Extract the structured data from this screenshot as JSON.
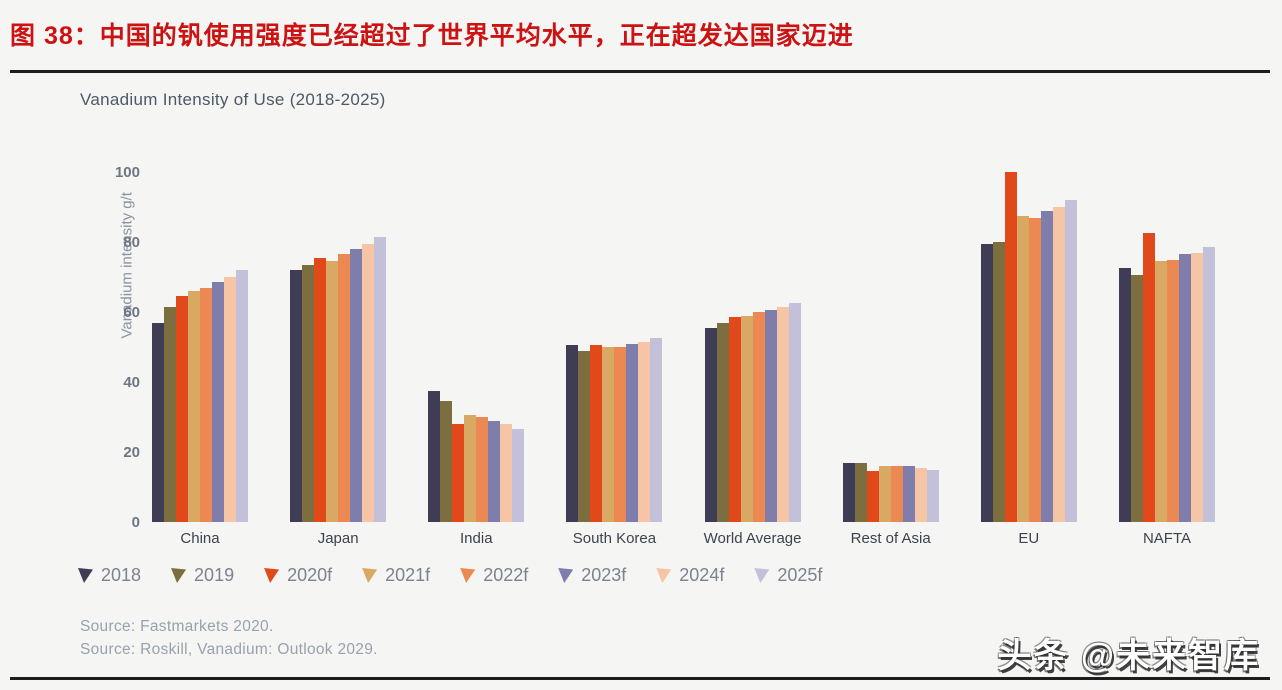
{
  "figure_header": {
    "title": "图 38：中国的钒使用强度已经超过了世界平均水平，正在超发达国家迈进",
    "accent_color": "#cc1212"
  },
  "chart_data": {
    "type": "bar",
    "title": "Vanadium Intensity of Use (2018-2025)",
    "xlabel": "",
    "ylabel": "Vanadium intensity g/t",
    "ylim": [
      0,
      100
    ],
    "yticks": [
      0,
      20,
      40,
      60,
      80,
      100
    ],
    "grid": false,
    "legend_position": "bottom",
    "categories": [
      "China",
      "Japan",
      "India",
      "South Korea",
      "World Average",
      "Rest of Asia",
      "EU",
      "NAFTA"
    ],
    "series": [
      {
        "name": "2018",
        "color": "#3f3d55",
        "values": [
          57,
          72,
          37.5,
          50.5,
          55.5,
          17,
          79.5,
          72.5
        ]
      },
      {
        "name": "2019",
        "color": "#7d6e40",
        "values": [
          61.5,
          73.5,
          34.5,
          49,
          57,
          17,
          80,
          70.5
        ]
      },
      {
        "name": "2020f",
        "color": "#e1481a",
        "values": [
          64.5,
          75.5,
          28,
          50.5,
          58.5,
          14.5,
          100,
          82.5
        ]
      },
      {
        "name": "2021f",
        "color": "#d9a964",
        "values": [
          66,
          74.5,
          30.5,
          50,
          59,
          16,
          87.5,
          74.5
        ]
      },
      {
        "name": "2022f",
        "color": "#ec8953",
        "values": [
          67,
          76.5,
          30,
          50,
          60,
          16,
          87,
          75
        ]
      },
      {
        "name": "2023f",
        "color": "#7e7dab",
        "values": [
          68.5,
          78,
          29,
          51,
          60.5,
          16,
          89,
          76.5
        ]
      },
      {
        "name": "2024f",
        "color": "#f6c5a6",
        "values": [
          70,
          79.5,
          28,
          51.5,
          61.5,
          15.5,
          90,
          77
        ]
      },
      {
        "name": "2025f",
        "color": "#c2c1d9",
        "values": [
          72,
          81.5,
          26.5,
          52.5,
          62.5,
          15,
          92,
          78.5
        ]
      }
    ]
  },
  "sources": {
    "line1": "Source: Fastmarkets 2020.",
    "line2": "Source: Roskill, Vanadium: Outlook 2029."
  },
  "watermark": "头条 @未来智库"
}
